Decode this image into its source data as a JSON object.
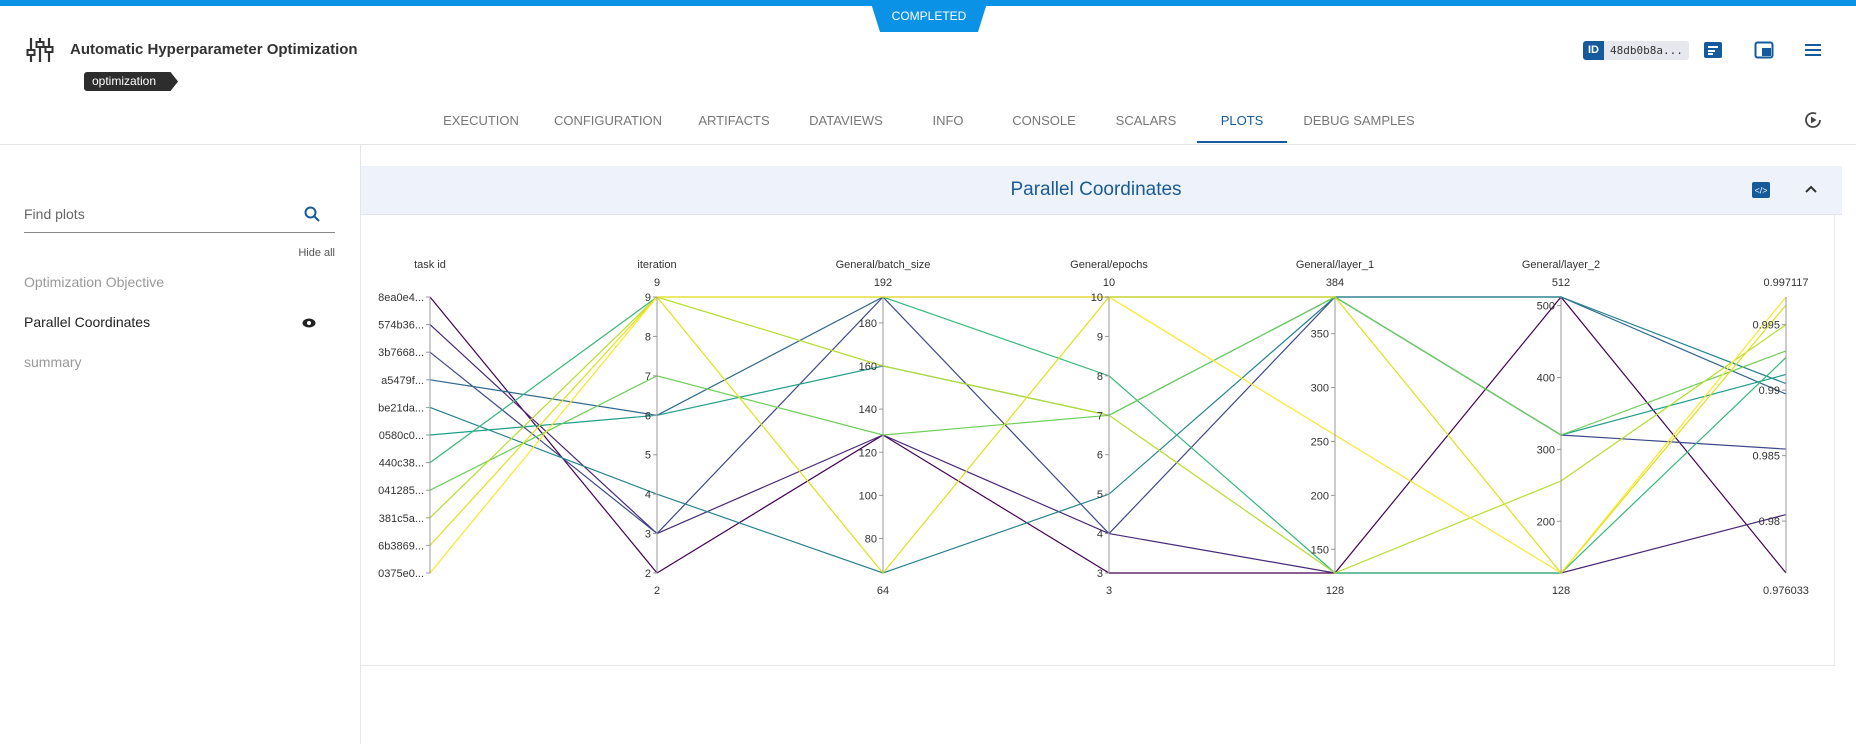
{
  "status": "COMPLETED",
  "header": {
    "title": "Automatic Hyperparameter Optimization",
    "tag": "optimization",
    "id_label": "ID",
    "id": "48db0b8a..."
  },
  "tabs": [
    "EXECUTION",
    "CONFIGURATION",
    "ARTIFACTS",
    "DATAVIEWS",
    "INFO",
    "CONSOLE",
    "SCALARS",
    "PLOTS",
    "DEBUG SAMPLES"
  ],
  "active_tab": 7,
  "sidebar": {
    "search_placeholder": "Find plots",
    "hide_all": "Hide all",
    "items": [
      "Optimization Objective",
      "Parallel Coordinates",
      "summary"
    ],
    "selected_item": 1
  },
  "panel": {
    "title": "Parallel Coordinates"
  },
  "chart_data": {
    "type": "parallel_coordinates",
    "line_colors": [
      "#440154",
      "#482878",
      "#3e4989",
      "#31688e",
      "#26828e",
      "#1f9e89",
      "#35b779",
      "#6ece58",
      "#b5de2b",
      "#dde318",
      "#fde725"
    ],
    "dimensions": [
      {
        "label": "task id",
        "categories": [
          "8ea0e4...",
          "574b36...",
          "3b7668...",
          "a5479f...",
          "be21da...",
          "0580c0...",
          "440c38...",
          "041285...",
          "381c5a...",
          "6b3869...",
          "0375e0..."
        ]
      },
      {
        "label": "iteration",
        "range": [
          2,
          9
        ],
        "ticks": [
          2,
          3,
          4,
          5,
          6,
          7,
          8,
          9
        ],
        "values": [
          2,
          3,
          3,
          6,
          4,
          6,
          9,
          7,
          9,
          9,
          9
        ]
      },
      {
        "label": "General/batch_size",
        "range": [
          64,
          192
        ],
        "ticks": [
          80,
          100,
          120,
          140,
          160,
          180
        ],
        "values": [
          128,
          128,
          192,
          192,
          64,
          160,
          192,
          128,
          160,
          64,
          192
        ]
      },
      {
        "label": "General/epochs",
        "range": [
          3,
          10
        ],
        "ticks": [
          3,
          4,
          5,
          6,
          7,
          8,
          9,
          10
        ],
        "values": [
          3,
          4,
          4,
          10,
          5,
          7,
          8,
          7,
          7,
          10,
          10
        ]
      },
      {
        "label": "General/layer_1",
        "range": [
          128,
          384
        ],
        "ticks": [
          150,
          200,
          250,
          300,
          350
        ],
        "values": [
          128,
          128,
          384,
          384,
          384,
          384,
          128,
          384,
          128,
          384,
          256
        ]
      },
      {
        "label": "General/layer_2",
        "range": [
          128,
          512
        ],
        "ticks": [
          200,
          300,
          400,
          500
        ],
        "values": [
          512,
          128,
          320,
          512,
          512,
          320,
          128,
          320,
          256,
          128,
          128
        ]
      },
      {
        "label": "",
        "range": [
          0.976033,
          0.997117
        ],
        "ticks": [
          0.98,
          0.985,
          0.99,
          0.995
        ],
        "values": [
          0.976033,
          0.9805,
          0.9855,
          0.9897,
          0.9905,
          0.9912,
          0.9925,
          0.993,
          0.995,
          0.9965,
          0.997117
        ]
      }
    ]
  }
}
